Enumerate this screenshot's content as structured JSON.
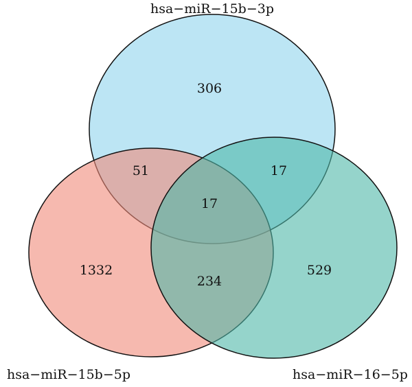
{
  "chart_data": {
    "type": "venn",
    "sets": [
      {
        "name": "hsa−miR−15b−3p",
        "color": "#8fd3ec"
      },
      {
        "name": "hsa−miR−15b−5p",
        "color": "#f08a7a"
      },
      {
        "name": "hsa−miR−16−5p",
        "color": "#4fb8a8"
      }
    ],
    "values": [
      306,
      51,
      17,
      17,
      1332,
      234,
      529
    ]
  }
}
